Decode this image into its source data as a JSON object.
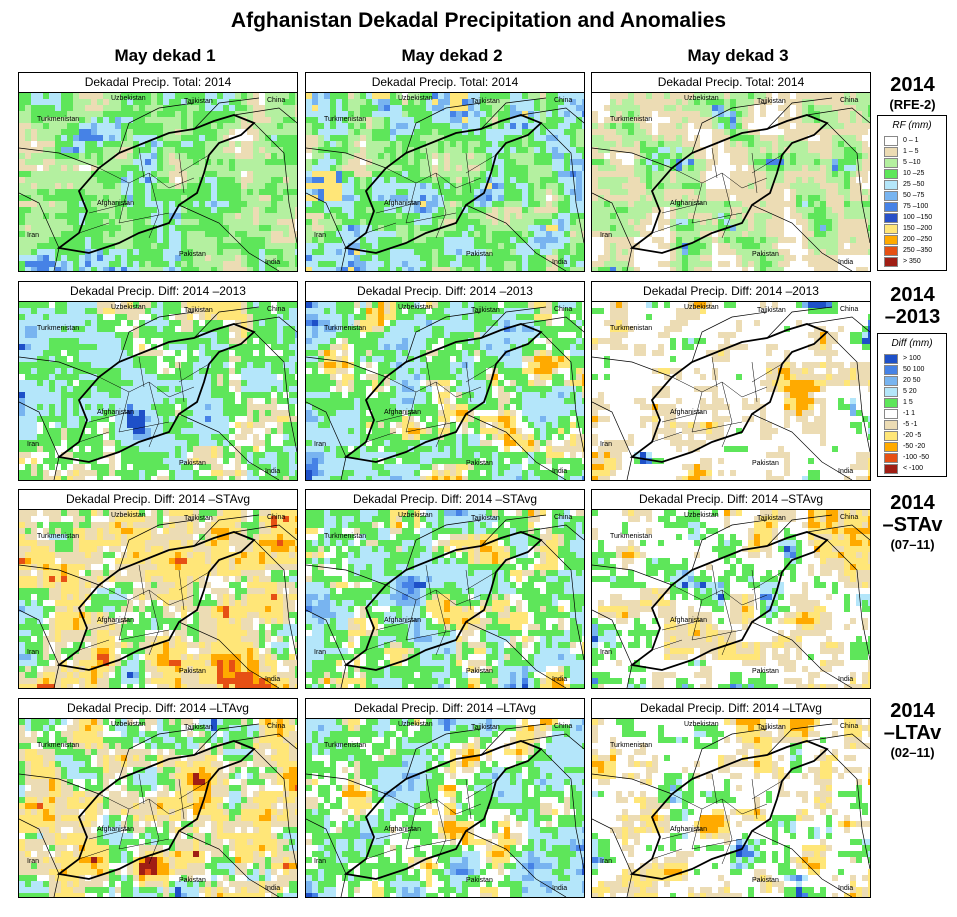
{
  "title": "Afghanistan Dekadal Precipitation and Anomalies",
  "columns": [
    "May dekad 1",
    "May dekad 2",
    "May dekad 3"
  ],
  "row_labels": [
    {
      "main": "2014",
      "sub": "(RFE-2)"
    },
    {
      "main": "2014\n–2013",
      "sub": ""
    },
    {
      "main": "2014\n–STAv",
      "sub": "(07–11)"
    },
    {
      "main": "2014\n–LTAv",
      "sub": "(02–11)"
    }
  ],
  "panel_titles": [
    "Dekadal Precip. Total: 2014",
    "Dekadal Precip. Diff: 2014 –2013",
    "Dekadal Precip. Diff: 2014 –STAvg",
    "Dekadal Precip. Diff: 2014 –LTAvg"
  ],
  "country_labels": {
    "uzbekistan": "Uzbekistan",
    "tajikistan": "Tajikistan",
    "china": "China",
    "turkmenistan": "Turkmenistan",
    "afghanistan": "Afghanistan",
    "iran": "Iran",
    "pakistan": "Pakistan",
    "india": "India"
  },
  "legend_rf": {
    "title": "RF (mm)",
    "items": [
      {
        "label": "0 – 1",
        "color": "#ffffff"
      },
      {
        "label": "1 – 5",
        "color": "#ecdcb4"
      },
      {
        "label": "5 –10",
        "color": "#b4f0a0"
      },
      {
        "label": "10 –25",
        "color": "#5ee65a"
      },
      {
        "label": "25 –50",
        "color": "#b4e6fa"
      },
      {
        "label": "50 –75",
        "color": "#78b4f0"
      },
      {
        "label": "75 –100",
        "color": "#4682e6"
      },
      {
        "label": "100 –150",
        "color": "#2850c8"
      },
      {
        "label": "150 –200",
        "color": "#ffe678"
      },
      {
        "label": "200 –250",
        "color": "#ffaa00"
      },
      {
        "label": "250 –350",
        "color": "#e65014"
      },
      {
        "label": "> 350",
        "color": "#a01e14"
      }
    ]
  },
  "legend_diff": {
    "title": "Diff (mm)",
    "items": [
      {
        "label": "> 100",
        "color": "#1e50c8"
      },
      {
        "label": "50  100",
        "color": "#4682e6"
      },
      {
        "label": "20  50",
        "color": "#78b4f0"
      },
      {
        "label": "5  20",
        "color": "#b4e6fa"
      },
      {
        "label": "1  5",
        "color": "#5ee65a"
      },
      {
        "label": "-1  1",
        "color": "#ffffff"
      },
      {
        "label": "-5  -1",
        "color": "#ecdcb4"
      },
      {
        "label": "-20  -5",
        "color": "#ffe678"
      },
      {
        "label": "-50  -20",
        "color": "#ffaa00"
      },
      {
        "label": "-100  -50",
        "color": "#e65014"
      },
      {
        "label": "< -100",
        "color": "#a01e14"
      }
    ]
  }
}
